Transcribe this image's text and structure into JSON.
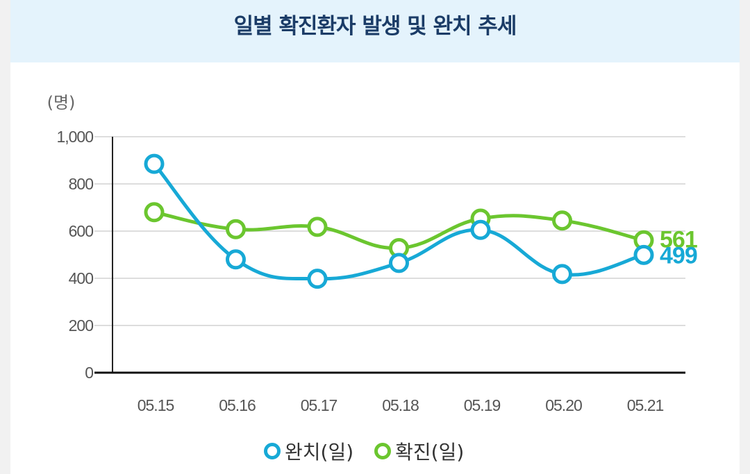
{
  "title": "일별 확진환자 발생 및 완치 추세",
  "chart_data": {
    "type": "line",
    "title": "일별 확진환자 발생 및 완치 추세",
    "ylabel": "(명)",
    "xlabel": "",
    "ylim": [
      0,
      1000
    ],
    "yticks": [
      0,
      200,
      400,
      600,
      800,
      1000
    ],
    "ytick_labels": [
      "0",
      "200",
      "400",
      "600",
      "800",
      "1,000"
    ],
    "categories": [
      "05.15",
      "05.16",
      "05.17",
      "05.18",
      "05.19",
      "05.20",
      "05.21"
    ],
    "series": [
      {
        "name": "완치(일)",
        "color": "#17a9d6",
        "values": [
          885,
          480,
          398,
          465,
          605,
          418,
          499
        ],
        "end_label": "499"
      },
      {
        "name": "확진(일)",
        "color": "#6bc62f",
        "values": [
          680,
          608,
          618,
          528,
          653,
          645,
          561
        ],
        "end_label": "561"
      }
    ],
    "grid": true
  }
}
